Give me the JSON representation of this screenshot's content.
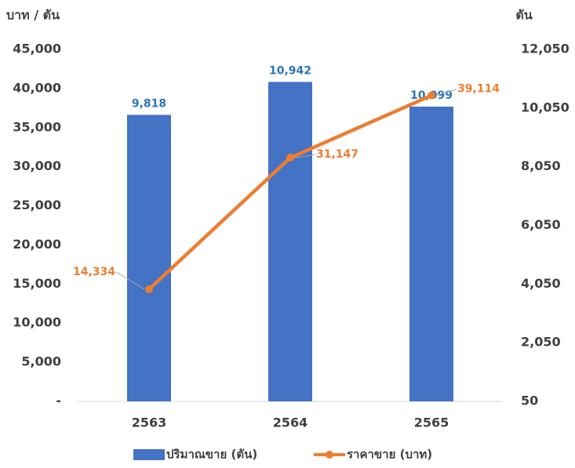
{
  "chart_data": {
    "type": "bar_line",
    "y_axis_label": "บาท / ตัน",
    "y2_axis_label": "ตัน",
    "categories": [
      "2563",
      "2564",
      "2565"
    ],
    "series": [
      {
        "name": "ปริมาณขาย (ตัน)",
        "type": "bar",
        "axis": "y2",
        "color": "#4472c4",
        "label_color": "#2e75b6",
        "values": [
          9818,
          10942,
          10099
        ],
        "value_labels": [
          "9,818",
          "10,942",
          "10,099"
        ]
      },
      {
        "name": "ราคาขาย (บาท)",
        "type": "line",
        "axis": "y",
        "color": "#ed7d31",
        "label_color": "#ed7d31",
        "values": [
          14334,
          31147,
          39114
        ],
        "value_labels": [
          "14,334",
          "31,147",
          "39,114"
        ]
      }
    ],
    "ylim": [
      0,
      45000
    ],
    "yticks": [
      {
        "value": 0,
        "label": "-"
      },
      {
        "value": 5000,
        "label": "5,000"
      },
      {
        "value": 10000,
        "label": "10,000"
      },
      {
        "value": 15000,
        "label": "15,000"
      },
      {
        "value": 20000,
        "label": "20,000"
      },
      {
        "value": 25000,
        "label": "25,000"
      },
      {
        "value": 30000,
        "label": "30,000"
      },
      {
        "value": 35000,
        "label": "35,000"
      },
      {
        "value": 40000,
        "label": "40,000"
      },
      {
        "value": 45000,
        "label": "45,000"
      }
    ],
    "y2lim": [
      50,
      12050
    ],
    "y2ticks": [
      50,
      {
        "value": 2050,
        "label": "2,050"
      },
      {
        "value": 4050,
        "label": "4,050"
      },
      {
        "value": 6050,
        "label": "6,050"
      },
      {
        "value": 8050,
        "label": "8,050"
      },
      {
        "value": 10050,
        "label": "10,050"
      },
      {
        "value": 12050,
        "label": "12,050"
      }
    ],
    "legend": "bottom",
    "grid": false
  }
}
